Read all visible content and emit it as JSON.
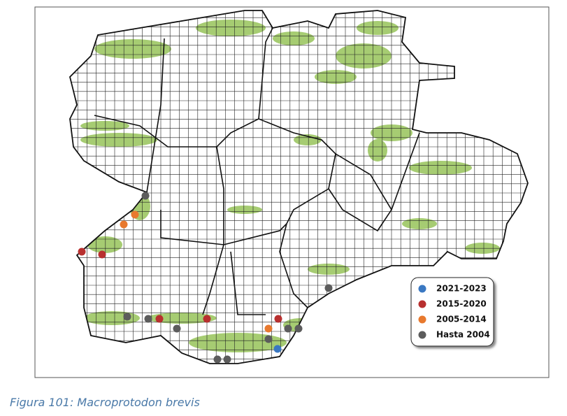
{
  "legend": {
    "items": [
      {
        "label": "2021-2023",
        "color": "#3a78c2"
      },
      {
        "label": "2015-2020",
        "color": "#b8302f"
      },
      {
        "label": "2005-2014",
        "color": "#e8792e"
      },
      {
        "label": "Hasta 2004",
        "color": "#5c5c5c"
      }
    ]
  },
  "caption": "Figura 101: Macroprotodon brevis"
}
